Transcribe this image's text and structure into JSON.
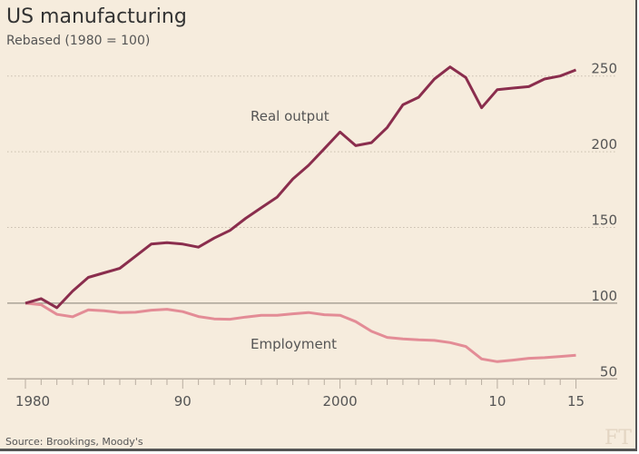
{
  "chart_data": {
    "type": "line",
    "title": "US manufacturing",
    "subtitle": "Rebased (1980 = 100)",
    "source": "Source: Brookings, Moody's",
    "logo": "FT",
    "x": [
      1980,
      1981,
      1982,
      1983,
      1984,
      1985,
      1986,
      1987,
      1988,
      1989,
      1990,
      1991,
      1992,
      1993,
      1994,
      1995,
      1996,
      1997,
      1998,
      1999,
      2000,
      2001,
      2002,
      2003,
      2004,
      2005,
      2006,
      2007,
      2008,
      2009,
      2010,
      2011,
      2012,
      2013,
      2014,
      2015
    ],
    "xlim": [
      1980,
      2015
    ],
    "ylim": [
      50,
      250
    ],
    "x_ticks": [
      {
        "value": 1980,
        "label": "1980"
      },
      {
        "value": 1990,
        "label": "90"
      },
      {
        "value": 2000,
        "label": "2000"
      },
      {
        "value": 2010,
        "label": "10"
      },
      {
        "value": 2015,
        "label": "15"
      }
    ],
    "y_ticks": [
      {
        "value": 50,
        "label": "50"
      },
      {
        "value": 100,
        "label": "100"
      },
      {
        "value": 150,
        "label": "150"
      },
      {
        "value": 200,
        "label": "200"
      },
      {
        "value": 250,
        "label": "250"
      }
    ],
    "grid": "horizontal dotted",
    "y_axis_side": "right",
    "series": [
      {
        "name": "Real output",
        "color": "#8a2d4d",
        "values": [
          100,
          103,
          97,
          108,
          117,
          120,
          123,
          131,
          139,
          140,
          139,
          137,
          143,
          148,
          156,
          163,
          170,
          182,
          191,
          202,
          213,
          204,
          206,
          216,
          231,
          236,
          248,
          256,
          249,
          229,
          241,
          242,
          243,
          248,
          250,
          254
        ]
      },
      {
        "name": "Employment",
        "color": "#e38c96",
        "values": [
          100,
          99,
          92.6,
          91,
          95.6,
          95,
          93.8,
          94,
          95.4,
          96,
          94.4,
          91.2,
          89.6,
          89.4,
          90.8,
          92,
          92,
          93,
          93.8,
          92.4,
          92,
          87.8,
          81.4,
          77.4,
          76.4,
          75.8,
          75.4,
          74,
          71.4,
          63.2,
          61.4,
          62.4,
          63.6,
          64,
          64.8,
          65.6
        ]
      }
    ]
  }
}
